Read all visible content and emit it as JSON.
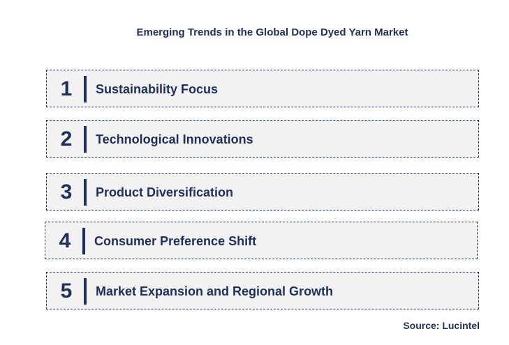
{
  "title": "Emerging Trends in the Global Dope Dyed Yarn Market",
  "items": [
    {
      "number": "1",
      "label": "Sustainability Focus"
    },
    {
      "number": "2",
      "label": "Technological Innovations"
    },
    {
      "number": "3",
      "label": "Product Diversification"
    },
    {
      "number": "4",
      "label": "Consumer Preference Shift"
    },
    {
      "number": "5",
      "label": "Market Expansion and Regional Growth"
    }
  ],
  "source": "Source: Lucintel"
}
